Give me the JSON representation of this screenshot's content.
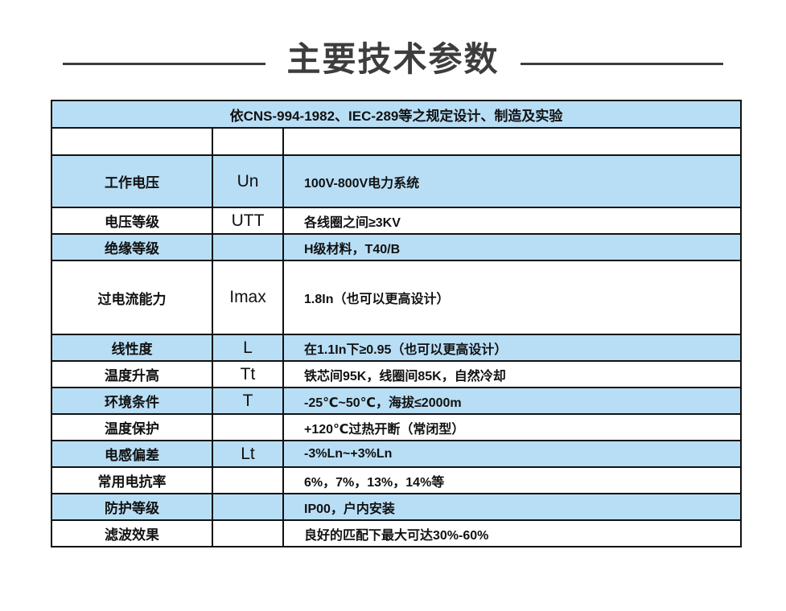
{
  "page": {
    "title": "主要技术参数"
  },
  "table": {
    "header": "依CNS-994-1982、IEC-289等之规定设计、制造及实验",
    "rows": [
      {
        "label": "",
        "symbol": "",
        "value": "",
        "shade": false,
        "size": "spacer"
      },
      {
        "label": "工作电压",
        "symbol": "Un",
        "value": "100V-800V电力系统",
        "shade": true,
        "size": "tall"
      },
      {
        "label": "电压等级",
        "symbol": "UTT",
        "value": "各线圈之间≥3KV",
        "shade": false,
        "size": "std"
      },
      {
        "label": "绝缘等级",
        "symbol": "",
        "value": "H级材料，T40/B",
        "shade": true,
        "size": "std"
      },
      {
        "label": "过电流能力",
        "symbol": "Imax",
        "value": "1.8In（也可以更高设计）",
        "shade": false,
        "size": "xtall"
      },
      {
        "label": "线性度",
        "symbol": "L",
        "value": "在1.1In下≥0.95（也可以更高设计）",
        "shade": true,
        "size": "std"
      },
      {
        "label": "温度升高",
        "symbol": "Tt",
        "value": "铁芯间95K，线圈间85K，自然冷却",
        "shade": false,
        "size": "std"
      },
      {
        "label": "环境条件",
        "symbol": "T",
        "value": "-25℃~50℃，海拔≤2000m",
        "shade": true,
        "size": "std"
      },
      {
        "label": "温度保护",
        "symbol": "",
        "value": "+120℃过热开断（常闭型）",
        "shade": false,
        "size": "std"
      },
      {
        "label": "电感偏差",
        "symbol": "Lt",
        "value": "-3%Ln~+3%Ln",
        "shade": true,
        "size": "std"
      },
      {
        "label": "常用电抗率",
        "symbol": "",
        "value": "6%，7%，13%，14%等",
        "shade": false,
        "size": "std"
      },
      {
        "label": "防护等级",
        "symbol": "",
        "value": "IP00，户内安装",
        "shade": true,
        "size": "std"
      },
      {
        "label": "滤波效果",
        "symbol": "",
        "value": "良好的匹配下最大可达30%-60%",
        "shade": false,
        "size": "std"
      }
    ]
  },
  "colors": {
    "row_shade": "#b8def5",
    "border": "#111111",
    "title": "#3d3d3d",
    "text": "#111111"
  }
}
